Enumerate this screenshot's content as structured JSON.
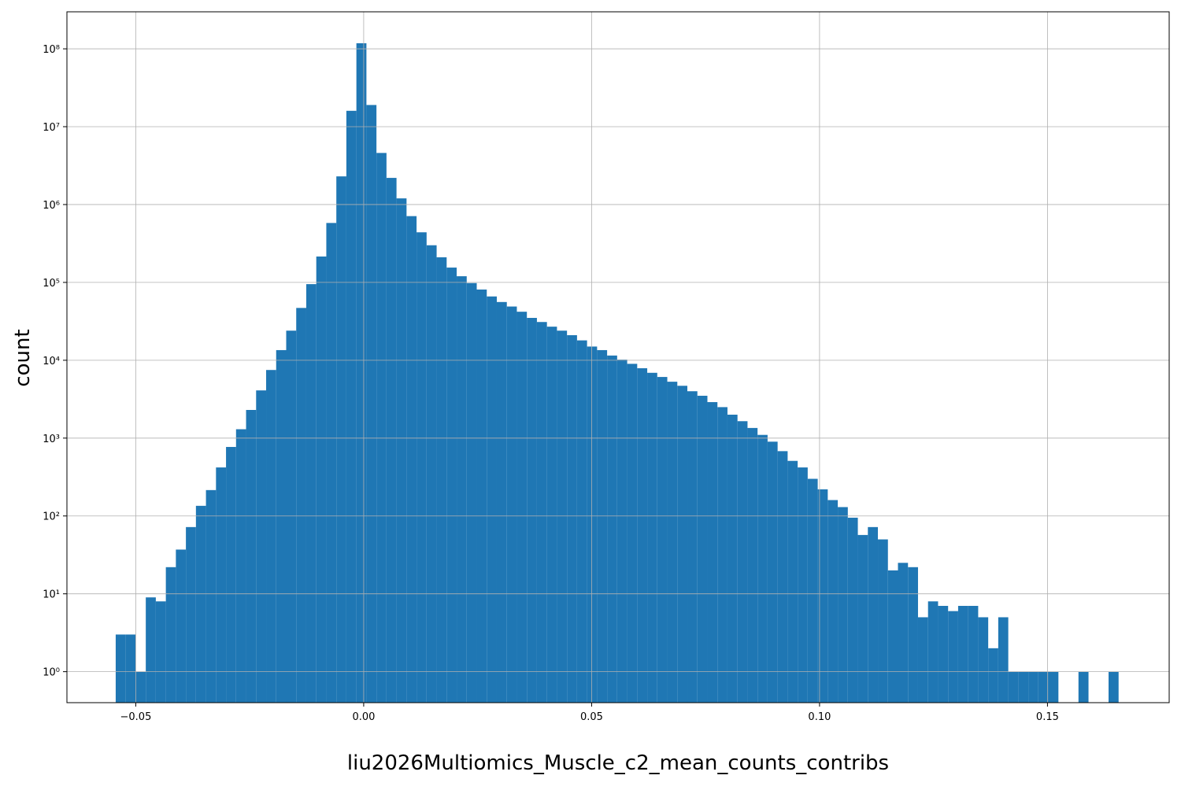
{
  "chart_data": {
    "type": "histogram",
    "xlabel": "liu2026Multiomics_Muscle_c2_mean_counts_contribs",
    "ylabel": "count",
    "color": "#1f77b4",
    "yscale": "log",
    "grid": true,
    "xlim": [
      -0.0651,
      0.1767
    ],
    "ylim": [
      0.4,
      299000000
    ],
    "xticks": [
      {
        "value": -0.05,
        "label": "−0.05"
      },
      {
        "value": 0,
        "label": "0.00"
      },
      {
        "value": 0.05,
        "label": "0.05"
      },
      {
        "value": 0.1,
        "label": "0.10"
      },
      {
        "value": 0.15,
        "label": "0.15"
      }
    ],
    "yticks": [
      {
        "value": 1,
        "label": "10⁰"
      },
      {
        "value": 10,
        "label": "10¹"
      },
      {
        "value": 100,
        "label": "10²"
      },
      {
        "value": 1000,
        "label": "10³"
      },
      {
        "value": 10000,
        "label": "10⁴"
      },
      {
        "value": 100000,
        "label": "10⁵"
      },
      {
        "value": 1000000,
        "label": "10⁶"
      },
      {
        "value": 10000000,
        "label": "10⁷"
      },
      {
        "value": 100000000,
        "label": "10⁸"
      }
    ],
    "bins": [
      -0.0544,
      -0.0522,
      -0.05,
      -0.0478,
      -0.0456,
      -0.0434,
      -0.0412,
      -0.039,
      -0.0368,
      -0.0346,
      -0.0324,
      -0.0302,
      -0.028,
      -0.0258,
      -0.0236,
      -0.0214,
      -0.0192,
      -0.017,
      -0.0148,
      -0.0126,
      -0.0104,
      -0.0082,
      -0.006,
      -0.0038,
      -0.0016,
      0.0006,
      0.0028,
      0.005,
      0.0072,
      0.0094,
      0.0116,
      0.0138,
      0.016,
      0.0182,
      0.0204,
      0.0226,
      0.0248,
      0.027,
      0.0292,
      0.0314,
      0.0336,
      0.0358,
      0.038,
      0.0402,
      0.0424,
      0.0446,
      0.0468,
      0.049,
      0.0512,
      0.0534,
      0.0556,
      0.0578,
      0.06,
      0.0622,
      0.0644,
      0.0666,
      0.0688,
      0.071,
      0.0732,
      0.0754,
      0.0776,
      0.0798,
      0.082,
      0.0842,
      0.0864,
      0.0886,
      0.0908,
      0.093,
      0.0952,
      0.0974,
      0.0996,
      0.1018,
      0.104,
      0.1062,
      0.1084,
      0.1106,
      0.1128,
      0.115,
      0.1172,
      0.1194,
      0.1216,
      0.1238,
      0.126,
      0.1282,
      0.1304,
      0.1326,
      0.1348,
      0.137,
      0.1392,
      0.1414,
      0.1436,
      0.1458,
      0.148,
      0.1502,
      0.1524,
      0.1546,
      0.1568,
      0.159,
      0.1612,
      0.1634,
      0.1656
    ],
    "values": [
      3,
      3,
      1,
      9,
      8,
      22,
      37,
      72,
      135,
      215,
      420,
      770,
      1300,
      2300,
      4100,
      7500,
      13500,
      24000,
      47000,
      95000,
      215000,
      580000,
      2300000,
      16000000,
      118000000,
      19000000,
      4600000,
      2200000,
      1200000,
      710000,
      440000,
      300000,
      210000,
      155000,
      120000,
      98000,
      81000,
      66000,
      56000,
      49000,
      42000,
      35000,
      31000,
      27000,
      24000,
      21000,
      18000,
      15000,
      13500,
      11500,
      10200,
      9000,
      7900,
      6900,
      6100,
      5300,
      4700,
      4000,
      3500,
      2900,
      2500,
      2000,
      1650,
      1350,
      1100,
      900,
      680,
      510,
      420,
      300,
      220,
      160,
      130,
      95,
      57,
      72,
      50,
      20,
      25,
      22,
      5,
      8,
      7,
      6,
      7,
      7,
      5,
      2,
      5,
      1,
      1,
      1,
      1,
      1,
      0,
      0,
      1,
      0,
      0,
      1
    ]
  }
}
